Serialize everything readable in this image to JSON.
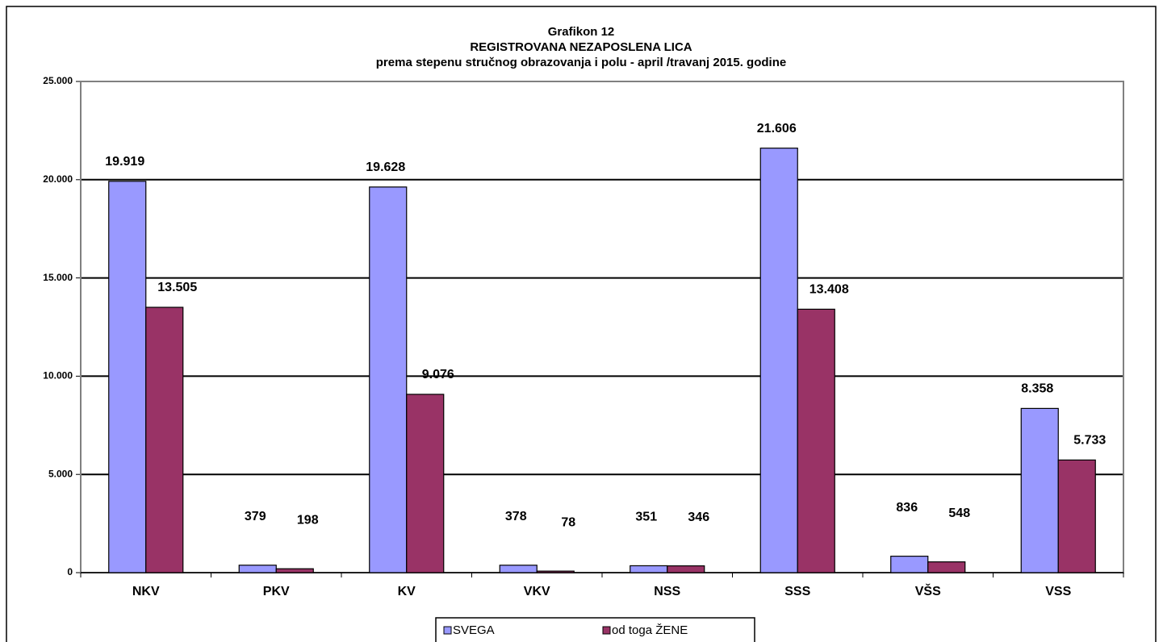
{
  "chart_data": {
    "type": "bar",
    "title": "Grafikon 12",
    "subtitle": [
      "REGISTROVANA NEZAPOSLENA LICA",
      "prema stepenu stručnog obrazovanja i polu - april /travanj 2015. godine"
    ],
    "categories": [
      "NKV",
      "PKV",
      "KV",
      "VKV",
      "NSS",
      "SSS",
      "VŠS",
      "VSS"
    ],
    "series": [
      {
        "name": "SVEGA",
        "color": "#9999ff",
        "values": [
          19919,
          379,
          19628,
          378,
          351,
          21606,
          836,
          8358
        ],
        "value_labels": [
          "19.919",
          "379",
          "19.628",
          "378",
          "351",
          "21.606",
          "836",
          "8.358"
        ]
      },
      {
        "name": "od toga ŽENE",
        "color": "#993366",
        "values": [
          13505,
          198,
          9076,
          78,
          346,
          13408,
          548,
          5733
        ],
        "value_labels": [
          "13.505",
          "198",
          "9.076",
          "78",
          "346",
          "13.408",
          "548",
          "5.733"
        ]
      }
    ],
    "ylim": [
      0,
      25000
    ],
    "yticks": [
      0,
      {
        "value": 5000,
        "label": "5.000"
      },
      {
        "value": 10000,
        "label": "10.000"
      },
      {
        "value": 15000,
        "label": "15.000"
      },
      {
        "value": 20000,
        "label": "20.000"
      },
      {
        "value": 25000,
        "label": "25.000"
      }
    ],
    "grid": true,
    "legend": "bottom"
  }
}
